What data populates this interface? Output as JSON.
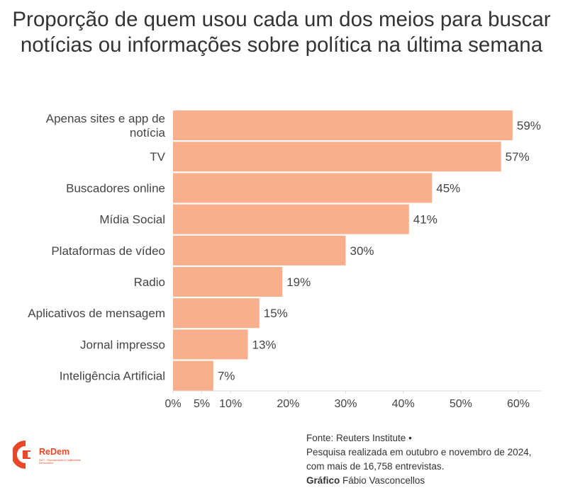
{
  "chart_data": {
    "type": "bar",
    "orientation": "horizontal",
    "title": "Proporção de quem usou cada um dos meios para buscar notícias ou informações sobre política na última semana",
    "categories": [
      "Apenas sites e app de notícia",
      "TV",
      "Buscadores online",
      "Mídia Social",
      "Plataformas de vídeo",
      "Radio",
      "Aplicativos de mensagem",
      "Jornal impresso",
      "Inteligência Artificial"
    ],
    "category_lines": [
      [
        "Apenas sites e app de",
        "notícia"
      ],
      [
        "TV"
      ],
      [
        "Buscadores online"
      ],
      [
        "Mídia Social"
      ],
      [
        "Plataformas de vídeo"
      ],
      [
        "Radio"
      ],
      [
        "Aplicativos de mensagem"
      ],
      [
        "Jornal impresso"
      ],
      [
        "Inteligência Artificial"
      ]
    ],
    "values": [
      59,
      57,
      45,
      41,
      30,
      19,
      15,
      13,
      7
    ],
    "value_labels": [
      "59%",
      "57%",
      "45%",
      "41%",
      "30%",
      "19%",
      "15%",
      "13%",
      "7%"
    ],
    "xticks": [
      0,
      5,
      10,
      20,
      30,
      40,
      50,
      60
    ],
    "xtick_labels": [
      "0%",
      "5%",
      "10%",
      "20%",
      "30%",
      "40%",
      "50%",
      "60%"
    ],
    "xlim": [
      0,
      60
    ],
    "xlabel": "",
    "ylabel": "",
    "grid": false,
    "bar_color": "#f9ae8c"
  },
  "logo": {
    "name": "ReDem",
    "subtitle": "INCT · Representação e Legitimidade Democrática",
    "color": "#e8472a"
  },
  "footer": {
    "source": "Fonte: Reuters Institute •",
    "note_line1": "Pesquisa realizada em outubro e novembro de 2024,",
    "note_line2": "com mais de 16,758 entrevistas.",
    "credit_label": "Gráfico",
    "credit_name": " Fábio Vasconcellos"
  }
}
